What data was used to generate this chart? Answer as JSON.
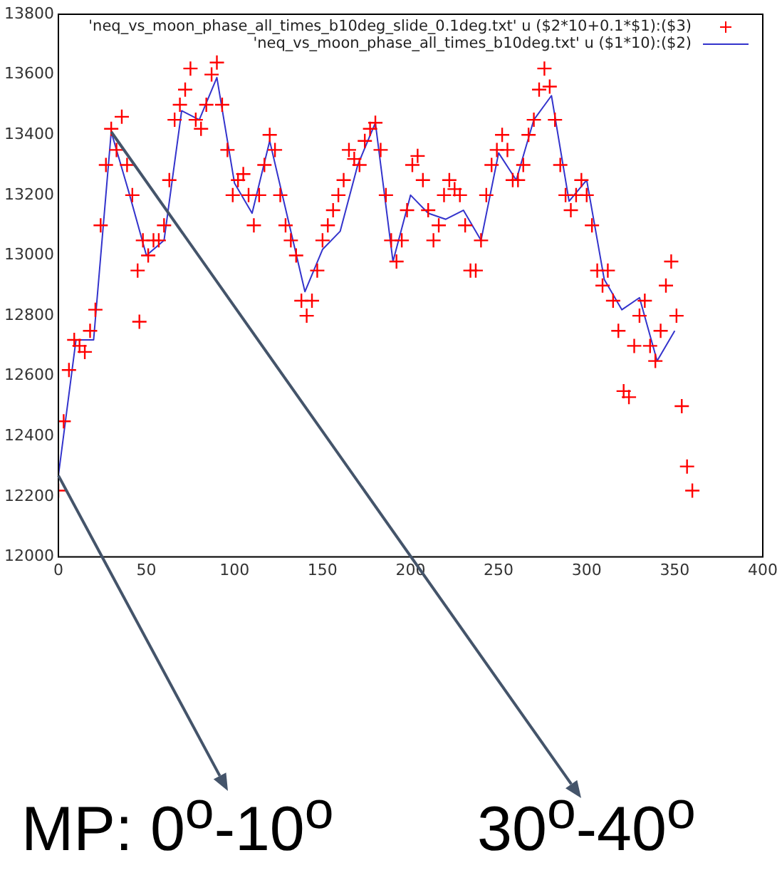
{
  "chart_data": {
    "type": "scatter",
    "xlim": [
      0,
      400
    ],
    "ylim": [
      12000,
      13800
    ],
    "xticks": [
      0,
      50,
      100,
      150,
      200,
      250,
      300,
      350,
      400
    ],
    "yticks": [
      12000,
      12200,
      12400,
      12600,
      12800,
      13000,
      13200,
      13400,
      13600,
      13800
    ],
    "grid": false,
    "legend": "top right",
    "series": [
      {
        "marker": "cross",
        "name": "'neq_vs_moon_phase_all_times_b10deg_slide_0.1deg.txt' u ($2*10+0.1*$1):($3)",
        "color": "#ff0000",
        "x": [
          0,
          3,
          6,
          9,
          12,
          15,
          18,
          21,
          24,
          27,
          30,
          33,
          36,
          39,
          42,
          45,
          46,
          48,
          51,
          54,
          57,
          60,
          63,
          66,
          69,
          72,
          75,
          78,
          81,
          84,
          87,
          90,
          93,
          96,
          99,
          102,
          105,
          108,
          111,
          114,
          117,
          120,
          123,
          126,
          129,
          132,
          135,
          138,
          141,
          144,
          147,
          150,
          153,
          156,
          159,
          162,
          165,
          168,
          171,
          174,
          177,
          180,
          183,
          186,
          189,
          192,
          195,
          198,
          201,
          204,
          207,
          210,
          213,
          216,
          219,
          222,
          225,
          228,
          231,
          234,
          237,
          240,
          243,
          246,
          249,
          252,
          255,
          258,
          261,
          264,
          267,
          270,
          273,
          276,
          279,
          282,
          285,
          288,
          291,
          294,
          297,
          300,
          303,
          306,
          309,
          312,
          315,
          318,
          321,
          324,
          327,
          330,
          333,
          336,
          339,
          342,
          345,
          348,
          351,
          354,
          357,
          360
        ],
        "values": [
          12220,
          12450,
          12620,
          12720,
          12700,
          12680,
          12750,
          12820,
          13100,
          13300,
          13420,
          13350,
          13460,
          13300,
          13200,
          12950,
          12780,
          13050,
          13000,
          13050,
          13050,
          13100,
          13250,
          13450,
          13500,
          13550,
          13620,
          13450,
          13420,
          13500,
          13600,
          13640,
          13500,
          13350,
          13200,
          13250,
          13270,
          13200,
          13100,
          13200,
          13300,
          13400,
          13350,
          13200,
          13100,
          13050,
          13000,
          12850,
          12800,
          12850,
          12950,
          13050,
          13100,
          13150,
          13200,
          13250,
          13350,
          13320,
          13300,
          13380,
          13420,
          13440,
          13350,
          13200,
          13050,
          12980,
          13050,
          13150,
          13300,
          13330,
          13250,
          13150,
          13050,
          13100,
          13200,
          13250,
          13220,
          13200,
          13100,
          12950,
          12950,
          13050,
          13200,
          13300,
          13350,
          13400,
          13350,
          13250,
          13250,
          13300,
          13400,
          13450,
          13550,
          13620,
          13560,
          13450,
          13300,
          13200,
          13150,
          13200,
          13250,
          13200,
          13100,
          12950,
          12900,
          12950,
          12850,
          12750,
          12550,
          12530,
          12700,
          12800,
          12850,
          12700,
          12650,
          12750,
          12900,
          12980,
          12800,
          12500,
          12300,
          12220
        ]
      },
      {
        "type": "line",
        "marker": "none",
        "name": "'neq_vs_moon_phase_all_times_b10deg.txt' u ($1*10):($2)",
        "color": "#3333cc",
        "x": [
          0,
          10,
          20,
          30,
          40,
          50,
          60,
          70,
          80,
          90,
          100,
          110,
          120,
          130,
          140,
          150,
          160,
          170,
          180,
          190,
          200,
          210,
          220,
          230,
          240,
          250,
          260,
          270,
          280,
          290,
          300,
          310,
          320,
          330,
          340,
          350
        ],
        "values": [
          12270,
          12720,
          12720,
          13410,
          13210,
          13000,
          13050,
          13480,
          13450,
          13590,
          13240,
          13140,
          13380,
          13130,
          12880,
          13020,
          13080,
          13300,
          13440,
          12980,
          13200,
          13140,
          13120,
          13150,
          13050,
          13340,
          13250,
          13450,
          13530,
          13180,
          13250,
          12920,
          12820,
          12860,
          12650,
          12750
        ]
      }
    ],
    "annotations": [
      {
        "text": "MP: 0$^{o}$-10$^{o}$",
        "x": 0,
        "y": 12270
      },
      {
        "text": "30$^{o}$-40$^{o}$",
        "x": 30,
        "y": 13410
      }
    ]
  }
}
